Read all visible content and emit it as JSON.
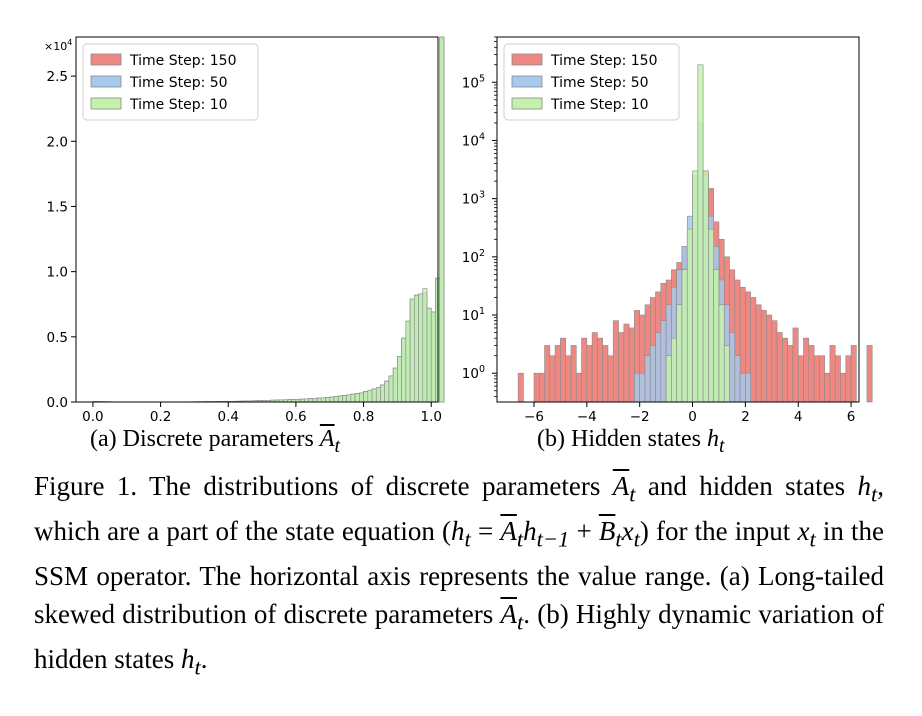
{
  "colors": {
    "s150": "#ee8883",
    "s50": "#a6c9ed",
    "s10": "#c4f2ad",
    "edge": "#8a8a8a",
    "axis": "#000000"
  },
  "chart_data": [
    {
      "type": "bar",
      "subtitle": "(a) Discrete parameters",
      "subtitle_math": "A",
      "subtitle_sub": "t",
      "xlabel": "",
      "ylabel": "",
      "xlim": [
        -0.05,
        1.02
      ],
      "ylim": [
        0,
        28000
      ],
      "ymultiplier": "×10",
      "ymultiplier_exp": "4",
      "xticks": [
        0.0,
        0.2,
        0.4,
        0.6,
        0.8,
        1.0
      ],
      "xtick_labels": [
        "0.0",
        "0.2",
        "0.4",
        "0.6",
        "0.8",
        "1.0"
      ],
      "yticks": [
        0,
        5000,
        10000,
        15000,
        20000,
        25000
      ],
      "ytick_labels": [
        "0.0",
        "0.5",
        "1.0",
        "1.5",
        "2.0",
        "2.5"
      ],
      "bin_width": 0.0125,
      "bin_start": 0.0,
      "legend": [
        "Time Step: 150",
        "Time Step: 50",
        "Time Step: 10"
      ],
      "series": [
        {
          "name": "Time Step: 150",
          "values": [
            40,
            30,
            25,
            20,
            18,
            15,
            12,
            10,
            8,
            6,
            5,
            5,
            5,
            5,
            5,
            6,
            6,
            7,
            8,
            10,
            12,
            14,
            16,
            18,
            20,
            22,
            25,
            28,
            30,
            35,
            40,
            45,
            50,
            55,
            60,
            70,
            80,
            90,
            100,
            110,
            120,
            130,
            140,
            150,
            160,
            170,
            180,
            190,
            200,
            220,
            240,
            260,
            280,
            300,
            320,
            350,
            380,
            420,
            460,
            500,
            550,
            600,
            650,
            700,
            800,
            900,
            1000,
            1100,
            1300,
            1600,
            2000,
            2600,
            3500,
            4900,
            6200,
            7900,
            8200,
            8300,
            8400,
            7200,
            6900,
            9500,
            28000
          ]
        },
        {
          "name": "Time Step: 50",
          "values": [
            40,
            30,
            25,
            20,
            18,
            15,
            12,
            10,
            8,
            6,
            5,
            5,
            5,
            5,
            5,
            6,
            6,
            7,
            8,
            10,
            12,
            14,
            16,
            18,
            20,
            22,
            25,
            28,
            30,
            35,
            40,
            45,
            50,
            55,
            60,
            70,
            80,
            90,
            100,
            110,
            120,
            130,
            140,
            150,
            160,
            170,
            180,
            190,
            200,
            220,
            240,
            260,
            280,
            300,
            320,
            350,
            380,
            420,
            460,
            500,
            550,
            600,
            650,
            700,
            800,
            900,
            1000,
            1100,
            1300,
            1600,
            2000,
            2600,
            3500,
            4900,
            6200,
            7800,
            8100,
            8300,
            8400,
            7100,
            6900,
            9400,
            28000
          ]
        },
        {
          "name": "Time Step: 10",
          "values": [
            40,
            30,
            25,
            20,
            18,
            15,
            12,
            10,
            8,
            6,
            5,
            5,
            5,
            5,
            5,
            6,
            6,
            7,
            8,
            10,
            12,
            14,
            16,
            18,
            20,
            22,
            25,
            28,
            30,
            35,
            40,
            45,
            50,
            55,
            60,
            70,
            80,
            90,
            100,
            110,
            120,
            130,
            140,
            150,
            160,
            170,
            180,
            190,
            200,
            220,
            240,
            260,
            280,
            300,
            320,
            350,
            380,
            420,
            460,
            500,
            550,
            600,
            650,
            700,
            800,
            900,
            1000,
            1100,
            1300,
            1600,
            2000,
            2600,
            3500,
            4900,
            6200,
            7900,
            8200,
            8300,
            8700,
            7200,
            6900,
            9500,
            29500
          ]
        }
      ]
    },
    {
      "type": "bar",
      "scale": "log",
      "subtitle": "(b) Hidden states",
      "subtitle_math": "h",
      "subtitle_sub": "t",
      "xlabel": "",
      "ylabel": "",
      "xlim": [
        -7.4,
        6.3
      ],
      "ylim": [
        0.32,
        600000
      ],
      "xticks": [
        -6,
        -4,
        -2,
        0,
        2,
        4,
        6
      ],
      "xtick_labels": [
        "−6",
        "−4",
        "−2",
        "0",
        "2",
        "4",
        "6"
      ],
      "yticks": [
        1,
        10,
        100,
        1000,
        10000,
        100000
      ],
      "ytick_base": "10",
      "ytick_exps": [
        "0",
        "1",
        "2",
        "3",
        "4",
        "5"
      ],
      "bin_width": 0.2,
      "bin_start": -7.0,
      "legend": [
        "Time Step: 150",
        "Time Step: 50",
        "Time Step: 10"
      ],
      "series": [
        {
          "name": "Time Step: 150",
          "values": [
            0,
            0,
            1,
            0,
            0,
            1,
            1,
            3,
            2,
            3,
            4,
            2,
            3,
            1,
            4,
            3,
            5,
            4,
            3,
            2,
            8,
            5,
            7,
            6,
            12,
            10,
            15,
            20,
            25,
            35,
            40,
            60,
            80,
            150,
            280,
            200,
            800,
            3000,
            1500,
            400,
            200,
            100,
            60,
            40,
            30,
            25,
            20,
            15,
            12,
            10,
            8,
            5,
            4,
            3,
            6,
            2,
            4,
            3,
            2,
            2,
            1,
            3,
            2,
            1,
            2,
            3,
            0,
            0,
            3,
            0,
            0,
            0,
            0
          ]
        },
        {
          "name": "Time Step: 50",
          "values": [
            0,
            0,
            0,
            0,
            0,
            0,
            0,
            0,
            0,
            0,
            0,
            0,
            0,
            0,
            0,
            0,
            0,
            0,
            0,
            0,
            0,
            0,
            0,
            0,
            1,
            1,
            2,
            3,
            5,
            8,
            15,
            30,
            60,
            150,
            500,
            2500,
            20000,
            2500,
            500,
            150,
            40,
            15,
            5,
            2,
            1,
            1,
            0,
            0,
            0,
            0,
            0,
            0,
            0,
            0,
            0,
            0,
            0,
            0,
            0,
            0,
            0,
            0,
            0,
            0,
            0,
            0,
            0,
            0,
            0,
            0,
            0,
            0,
            0
          ]
        },
        {
          "name": "Time Step: 10",
          "values": [
            0,
            0,
            0,
            0,
            0,
            0,
            0,
            0,
            0,
            0,
            0,
            0,
            0,
            0,
            0,
            0,
            0,
            0,
            0,
            0,
            0,
            0,
            0,
            0,
            0,
            0,
            0,
            0,
            0,
            0,
            2,
            4,
            15,
            60,
            300,
            3000,
            200000,
            3000,
            300,
            60,
            15,
            3,
            0,
            0,
            0,
            0,
            0,
            0,
            0,
            0,
            0,
            0,
            0,
            0,
            0,
            0,
            0,
            0,
            0,
            0,
            0,
            0,
            0,
            0,
            0,
            0,
            0,
            0,
            0,
            0,
            0,
            0,
            0
          ]
        }
      ]
    }
  ],
  "caption": {
    "seg1": "Figure 1.  The distributions of discrete parameters ",
    "A": "A",
    "t1": "t",
    "seg2": " and hidden states ",
    "h1": "h",
    "t2": "t",
    "seg3": ", which are a part of the state equation (",
    "h2": "h",
    "t3": "t",
    "eq": " = ",
    "A2": "A",
    "t4": "t",
    "h3": "h",
    "tm1": "t−1",
    "plus": " + ",
    "B": "B",
    "t5": "t",
    "x1": "x",
    "t6": "t",
    "seg4": ") for the input ",
    "x2": "x",
    "t7": "t",
    "seg5": " in the SSM operator.  The horizontal axis represents the value range. (a) Long-tailed skewed distribution of discrete parameters ",
    "A3": "A",
    "t8": "t",
    "seg6": ".  (b) Highly dynamic variation of hidden states ",
    "h4": "h",
    "t9": "t",
    "seg7": "."
  }
}
